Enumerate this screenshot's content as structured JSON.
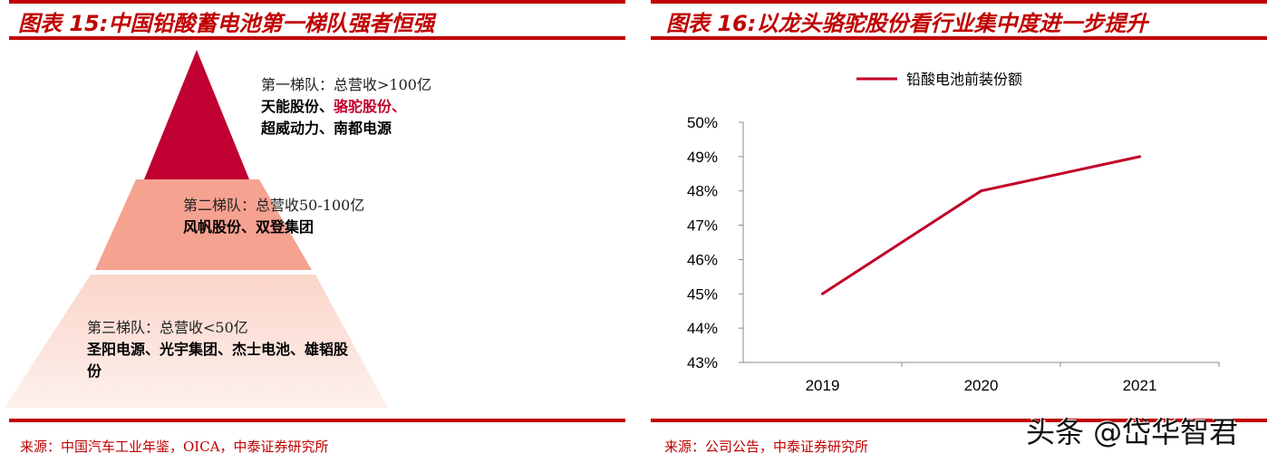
{
  "left": {
    "title": "图表 15:中国铅酸蓄电池第一梯队强者恒强",
    "source": "来源：中国汽车工业年鉴，OICA，中泰证券研究所",
    "tiers": [
      {
        "label": "第一梯队：总营收>100亿",
        "companies_a": "天能股份、",
        "companies_hl": "骆驼股份、",
        "companies_b": "超威动力、南都电源",
        "color": "#C00030"
      },
      {
        "label": "第二梯队：总营收50-100亿",
        "companies": "风帆股份、双登集团",
        "color": "#F5A291"
      },
      {
        "label": "第三梯队：总营收<50亿",
        "companies": "圣阳电源、光宇集团、杰士电池、雄韬股份",
        "color": "#FBDCD3"
      }
    ]
  },
  "right": {
    "title": "图表 16:以龙头骆驼股份看行业集中度进一步提升",
    "source": "来源：公司公告，中泰证券研究所"
  },
  "watermark": "头条 @岱华智君",
  "chart_data": {
    "type": "line",
    "categories": [
      "2019",
      "2020",
      "2021"
    ],
    "series": [
      {
        "name": "铅酸电池前装份额",
        "values": [
          45,
          48,
          49
        ],
        "color": "#C0002A"
      }
    ],
    "ylim": [
      43,
      50
    ],
    "yticks": [
      "43%",
      "44%",
      "45%",
      "46%",
      "47%",
      "48%",
      "49%",
      "50%"
    ],
    "grid": false,
    "legend": "top"
  }
}
